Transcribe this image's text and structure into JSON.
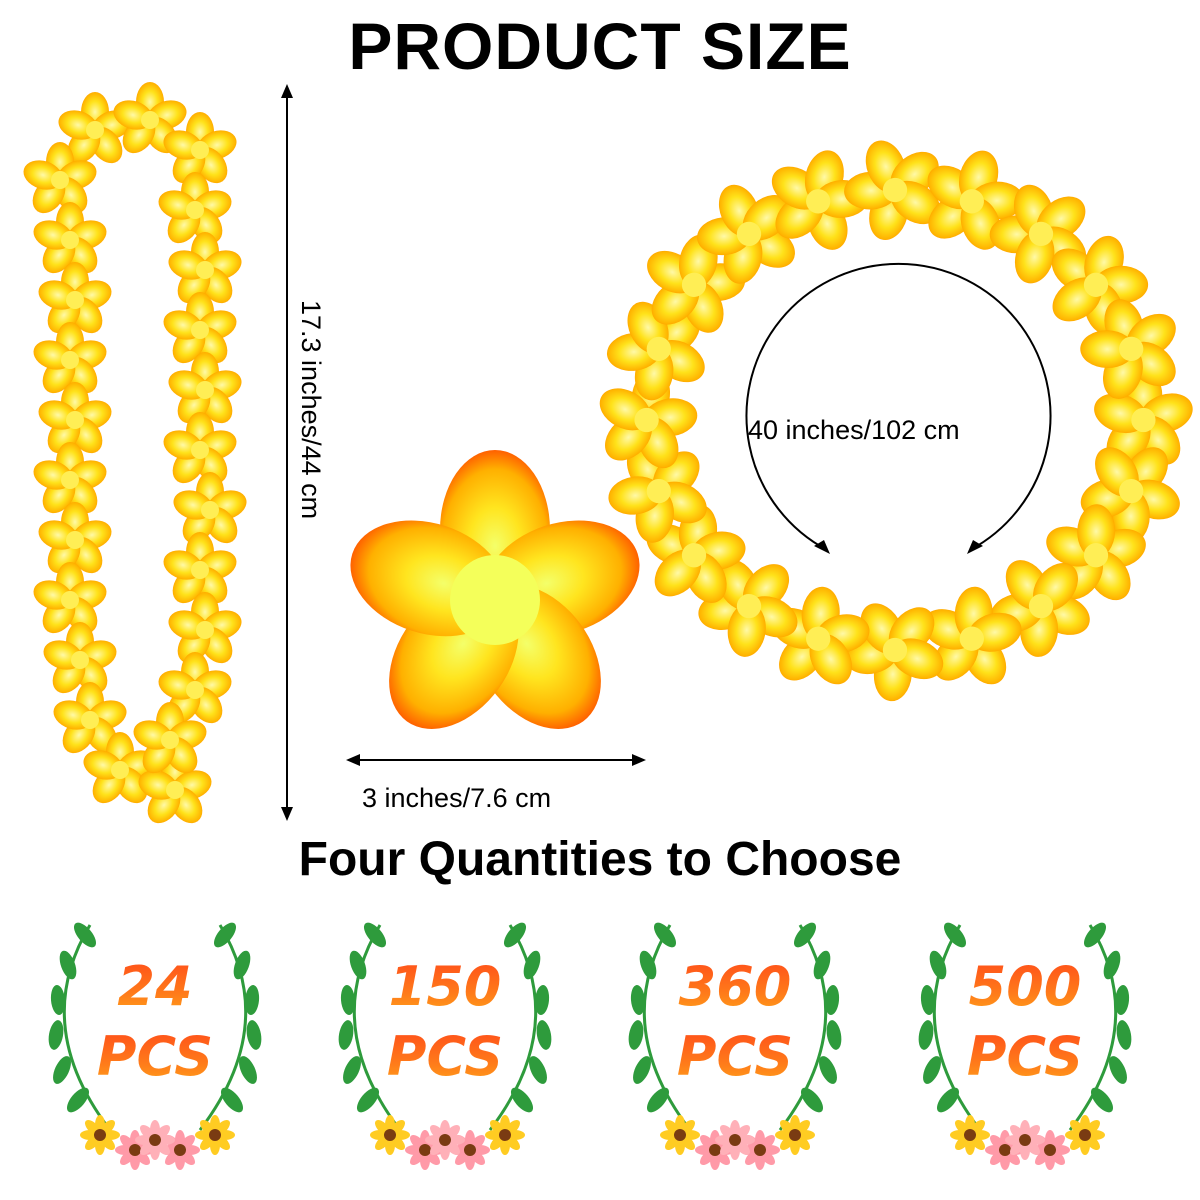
{
  "title": "PRODUCT SIZE",
  "subtitle": "Four Quantities to Choose",
  "dimensions": {
    "lei_length": "17.3 inches/44 cm",
    "flower_width": "3 inches/7.6 cm",
    "circumference": "40 inches/102 cm"
  },
  "quantities": [
    {
      "number": "24",
      "unit": "PCS"
    },
    {
      "number": "150",
      "unit": "PCS"
    },
    {
      "number": "360",
      "unit": "PCS"
    },
    {
      "number": "500",
      "unit": "PCS"
    }
  ],
  "colors": {
    "petal_yellow": "#ffe21a",
    "petal_orange": "#ff8c00",
    "leaf_green": "#2e9b3c",
    "qty_orange": "#ff6a1a"
  }
}
